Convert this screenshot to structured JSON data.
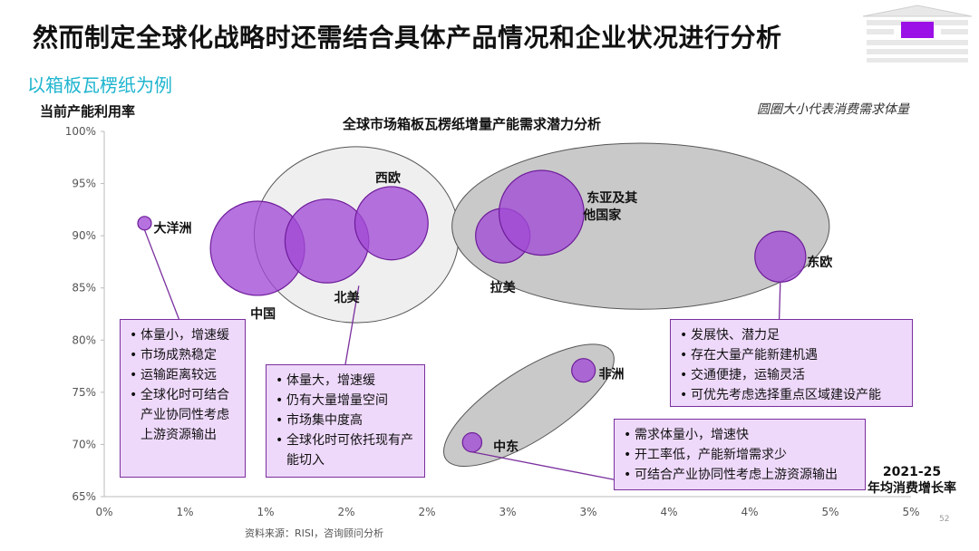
{
  "header": {
    "title": "然而制定全球化战略时还需结合具体产品情况和企业状况进行分析",
    "subtitle": "以箱板瓦楞纸为例"
  },
  "chart_data": {
    "type": "scatter",
    "bubble": true,
    "title": "全球市场箱板瓦楞纸增量产能需求潜力分析",
    "ylabel": "当前产能利用率",
    "xlabel_line1": "2021-25",
    "xlabel_line2": "年均消费增长率",
    "size_note": "圆圈大小代表消费需求体量",
    "xlim": [
      0,
      0.05
    ],
    "ylim": [
      65,
      100
    ],
    "x_ticks": [
      {
        "v": 0.0,
        "label": "0%"
      },
      {
        "v": 0.005,
        "label": "1%"
      },
      {
        "v": 0.01,
        "label": "1%"
      },
      {
        "v": 0.015,
        "label": "2%"
      },
      {
        "v": 0.02,
        "label": "2%"
      },
      {
        "v": 0.025,
        "label": "3%"
      },
      {
        "v": 0.03,
        "label": "3%"
      },
      {
        "v": 0.035,
        "label": "4%"
      },
      {
        "v": 0.04,
        "label": "4%"
      },
      {
        "v": 0.045,
        "label": "5%"
      },
      {
        "v": 0.05,
        "label": "5%"
      }
    ],
    "y_ticks": [
      {
        "v": 100,
        "label": "100%"
      },
      {
        "v": 95,
        "label": "95%"
      },
      {
        "v": 90,
        "label": "90%"
      },
      {
        "v": 85,
        "label": "85%"
      },
      {
        "v": 80,
        "label": "80%"
      },
      {
        "v": 75,
        "label": "75%"
      },
      {
        "v": 70,
        "label": "70%"
      },
      {
        "v": 65,
        "label": "65%"
      }
    ],
    "points": [
      {
        "label": "大洋洲",
        "x": 0.0025,
        "y": 91.2,
        "size": 1
      },
      {
        "label": "中国",
        "x": 0.0095,
        "y": 88.8,
        "size": 48
      },
      {
        "label": "北美",
        "x": 0.0138,
        "y": 89.5,
        "size": 38
      },
      {
        "label": "西欧",
        "x": 0.0178,
        "y": 91.2,
        "size": 29
      },
      {
        "label": "拉美",
        "x": 0.0247,
        "y": 90.0,
        "size": 16
      },
      {
        "label": "东亚及其他国家",
        "x": 0.0271,
        "y": 92.2,
        "size": 39
      },
      {
        "label": "东欧",
        "x": 0.0419,
        "y": 88.0,
        "size": 14
      },
      {
        "label": "非洲",
        "x": 0.0297,
        "y": 77.1,
        "size": 3
      },
      {
        "label": "中东",
        "x": 0.0228,
        "y": 70.2,
        "size": 2
      }
    ],
    "groups": [
      {
        "name": "developed",
        "members": [
          "北美",
          "西欧"
        ]
      },
      {
        "name": "emerging-asia",
        "members": [
          "拉美",
          "东亚及其他国家",
          "东欧"
        ]
      },
      {
        "name": "mideast-africa",
        "members": [
          "非洲",
          "中东"
        ]
      }
    ],
    "colors": {
      "bubble_fill": "#a24ad6",
      "bubble_stroke": "#6d1c99",
      "group_grey": "#c9c9c9",
      "group_light": "#efefef",
      "callout_line": "#7a2f9e"
    }
  },
  "notes": {
    "oceania": [
      "体量小，增速缓",
      "市场成熟稳定",
      "运输距离较远",
      "全球化时可结合产业协同性考虑上游资源输出"
    ],
    "china": [
      "体量大，增速缓",
      "仍有大量增量空间",
      "市场集中度高",
      "全球化时可依托现有产能切入"
    ],
    "eeurope": [
      "发展快、潜力足",
      "存在大量产能新建机遇",
      "交通便捷，运输灵活",
      "可优先考虑选择重点区域建设产能"
    ],
    "mideast": [
      "需求体量小，增速快",
      "开工率低，产能新增需求少",
      "可结合产业协同性考虑上游资源输出"
    ]
  },
  "footer": {
    "source": "资料来源：RISI，咨询顾问分析",
    "page_number": "52"
  },
  "logo": {
    "accent": "#9b10e6"
  }
}
